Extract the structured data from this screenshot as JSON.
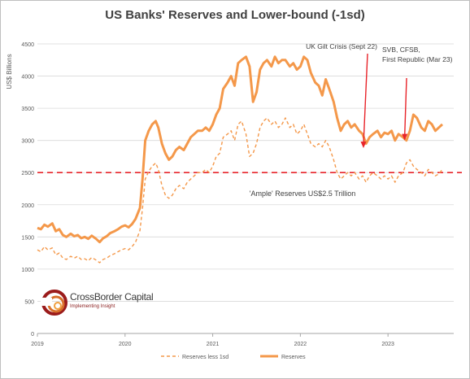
{
  "chart_data": {
    "type": "line",
    "title": "US Banks' Reserves and Lower-bound (-1sd)",
    "ylabel": "US$ Billions",
    "xlabel": "",
    "ylim": [
      0,
      4500
    ],
    "xlim": [
      2019.0,
      2023.75
    ],
    "y_ticks": [
      "0",
      "500",
      "1000",
      "1500",
      "2000",
      "2500",
      "3000",
      "3500",
      "4000",
      "4500"
    ],
    "x_ticks": [
      "2019",
      "2020",
      "2021",
      "2022",
      "2023"
    ],
    "grid": true,
    "legend_position": "bottom",
    "threshold": {
      "value": 2500,
      "label": "'Ample' Reserves US$2.5 Trillion",
      "color": "#e8242a"
    },
    "annotations": [
      {
        "lines": [
          "UK Gilt Crisis (Sept 22)"
        ],
        "x": 2022.72,
        "y": 2880
      },
      {
        "lines": [
          "SVB, CFSB,",
          "First Republic (Mar 23)"
        ],
        "x": 2023.19,
        "y": 3000
      }
    ],
    "colors": {
      "reserves": "#f4984a",
      "lower": "#f4984a",
      "annotation_arrow": "#e8242a",
      "grid": "#d9d9d9"
    },
    "series": [
      {
        "name": "Reserves",
        "style": "solid",
        "x": [
          2019.0,
          2019.04,
          2019.08,
          2019.12,
          2019.17,
          2019.21,
          2019.25,
          2019.29,
          2019.33,
          2019.38,
          2019.42,
          2019.46,
          2019.5,
          2019.54,
          2019.58,
          2019.62,
          2019.67,
          2019.71,
          2019.75,
          2019.79,
          2019.83,
          2019.88,
          2019.92,
          2019.96,
          2020.0,
          2020.04,
          2020.08,
          2020.12,
          2020.17,
          2020.2,
          2020.23,
          2020.27,
          2020.31,
          2020.35,
          2020.38,
          2020.42,
          2020.46,
          2020.5,
          2020.54,
          2020.58,
          2020.62,
          2020.67,
          2020.71,
          2020.75,
          2020.79,
          2020.83,
          2020.88,
          2020.92,
          2020.96,
          2021.0,
          2021.04,
          2021.08,
          2021.12,
          2021.17,
          2021.21,
          2021.25,
          2021.29,
          2021.33,
          2021.38,
          2021.42,
          2021.46,
          2021.5,
          2021.54,
          2021.58,
          2021.62,
          2021.67,
          2021.71,
          2021.75,
          2021.79,
          2021.83,
          2021.88,
          2021.92,
          2021.96,
          2022.0,
          2022.04,
          2022.08,
          2022.12,
          2022.17,
          2022.21,
          2022.25,
          2022.29,
          2022.33,
          2022.38,
          2022.42,
          2022.46,
          2022.5,
          2022.54,
          2022.58,
          2022.62,
          2022.67,
          2022.71,
          2022.75,
          2022.79,
          2022.83,
          2022.88,
          2022.92,
          2022.96,
          2023.0,
          2023.04,
          2023.08,
          2023.12,
          2023.17,
          2023.21,
          2023.25,
          2023.29,
          2023.33,
          2023.38,
          2023.42,
          2023.46,
          2023.5,
          2023.54,
          2023.58,
          2023.62
        ],
        "values": [
          1640,
          1620,
          1690,
          1660,
          1710,
          1590,
          1620,
          1530,
          1500,
          1550,
          1510,
          1530,
          1480,
          1500,
          1470,
          1520,
          1470,
          1420,
          1480,
          1510,
          1560,
          1590,
          1620,
          1660,
          1680,
          1650,
          1700,
          1780,
          1950,
          2400,
          3000,
          3150,
          3250,
          3300,
          3200,
          2950,
          2800,
          2700,
          2750,
          2850,
          2900,
          2850,
          2950,
          3050,
          3100,
          3150,
          3150,
          3200,
          3150,
          3250,
          3400,
          3500,
          3800,
          3900,
          4000,
          3850,
          4200,
          4250,
          4300,
          4150,
          3600,
          3750,
          4100,
          4200,
          4250,
          4150,
          4300,
          4200,
          4250,
          4250,
          4150,
          4200,
          4100,
          4150,
          4300,
          4250,
          4050,
          3900,
          3850,
          3700,
          3950,
          3800,
          3600,
          3350,
          3150,
          3250,
          3300,
          3200,
          3250,
          3150,
          3100,
          2950,
          3050,
          3100,
          3150,
          3050,
          3120,
          3100,
          3150,
          3000,
          3100,
          3050,
          3000,
          3150,
          3400,
          3350,
          3200,
          3150,
          3300,
          3250,
          3150,
          3200,
          3250
        ]
      },
      {
        "name": "Reserves less 1sd",
        "style": "dashed",
        "x": [
          2019.0,
          2019.04,
          2019.08,
          2019.12,
          2019.17,
          2019.21,
          2019.25,
          2019.29,
          2019.33,
          2019.38,
          2019.42,
          2019.46,
          2019.5,
          2019.54,
          2019.58,
          2019.62,
          2019.67,
          2019.71,
          2019.75,
          2019.79,
          2019.83,
          2019.88,
          2019.92,
          2019.96,
          2020.0,
          2020.04,
          2020.08,
          2020.12,
          2020.17,
          2020.2,
          2020.23,
          2020.27,
          2020.31,
          2020.35,
          2020.38,
          2020.42,
          2020.46,
          2020.5,
          2020.54,
          2020.58,
          2020.62,
          2020.67,
          2020.71,
          2020.75,
          2020.79,
          2020.83,
          2020.88,
          2020.92,
          2020.96,
          2021.0,
          2021.04,
          2021.08,
          2021.12,
          2021.17,
          2021.21,
          2021.25,
          2021.29,
          2021.33,
          2021.38,
          2021.42,
          2021.46,
          2021.5,
          2021.54,
          2021.58,
          2021.62,
          2021.67,
          2021.71,
          2021.75,
          2021.79,
          2021.83,
          2021.88,
          2021.92,
          2021.96,
          2022.0,
          2022.04,
          2022.08,
          2022.12,
          2022.17,
          2022.21,
          2022.25,
          2022.29,
          2022.33,
          2022.38,
          2022.42,
          2022.46,
          2022.5,
          2022.54,
          2022.58,
          2022.62,
          2022.67,
          2022.71,
          2022.75,
          2022.79,
          2022.83,
          2022.88,
          2022.92,
          2022.96,
          2023.0,
          2023.04,
          2023.08,
          2023.12,
          2023.17,
          2023.21,
          2023.25,
          2023.29,
          2023.33,
          2023.38,
          2023.42,
          2023.46,
          2023.5,
          2023.54,
          2023.58,
          2023.62
        ],
        "values": [
          1300,
          1270,
          1350,
          1300,
          1330,
          1220,
          1250,
          1170,
          1150,
          1200,
          1170,
          1200,
          1150,
          1160,
          1130,
          1180,
          1140,
          1100,
          1150,
          1170,
          1210,
          1240,
          1270,
          1300,
          1320,
          1300,
          1350,
          1420,
          1600,
          1950,
          2400,
          2520,
          2600,
          2650,
          2550,
          2300,
          2150,
          2100,
          2150,
          2250,
          2300,
          2250,
          2350,
          2400,
          2450,
          2500,
          2500,
          2550,
          2500,
          2600,
          2750,
          2800,
          3050,
          3100,
          3150,
          3000,
          3250,
          3300,
          3100,
          2750,
          2800,
          2950,
          3200,
          3300,
          3350,
          3250,
          3300,
          3200,
          3250,
          3350,
          3200,
          3250,
          3100,
          3150,
          3250,
          3100,
          2950,
          2900,
          2950,
          2900,
          3000,
          2900,
          2700,
          2500,
          2400,
          2450,
          2500,
          2450,
          2500,
          2400,
          2450,
          2350,
          2450,
          2500,
          2450,
          2400,
          2450,
          2400,
          2450,
          2350,
          2450,
          2500,
          2650,
          2700,
          2600,
          2550,
          2500,
          2450,
          2550,
          2500,
          2450,
          2480,
          2550
        ]
      }
    ]
  },
  "logo": {
    "name": "CrossBorder Capital",
    "tagline": "Implementing Insight"
  }
}
